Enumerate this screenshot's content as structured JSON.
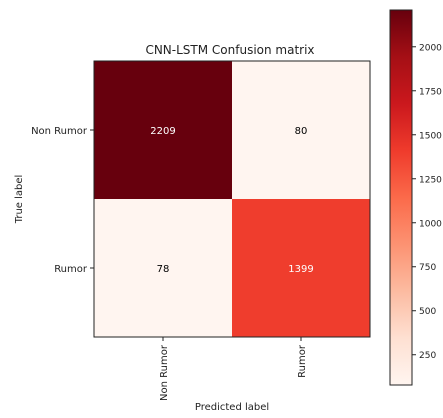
{
  "chart_data": {
    "type": "heatmap",
    "title": "CNN-LSTM Confusion matrix",
    "xlabel": "Predicted label",
    "ylabel": "True label",
    "x_categories": [
      "Non Rumor",
      "Rumor"
    ],
    "y_categories": [
      "Non Rumor",
      "Rumor"
    ],
    "values": [
      [
        2209,
        80
      ],
      [
        78,
        1399
      ]
    ],
    "colormap": "Reds",
    "colorbar": {
      "vmin": 78,
      "vmax": 2209,
      "ticks": [
        250,
        500,
        750,
        1000,
        1250,
        1500,
        1750,
        2000
      ]
    },
    "text_colors": {
      "dark_cell": "#ffffff",
      "light_cell": "#000000"
    }
  }
}
